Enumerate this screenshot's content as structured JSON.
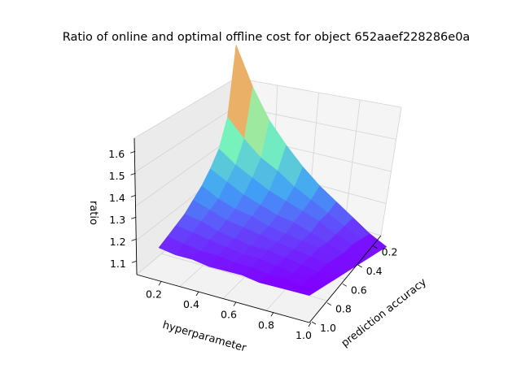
{
  "chart_data": {
    "type": "surface3d",
    "title": "Ratio of online and optimal offline cost for object 652aaef228286e0a",
    "xlabel": "hyperparameter",
    "ylabel": "prediction accuracy",
    "zlabel": "ratio",
    "colormap": "rainbow",
    "x_ticks": [
      "0.2",
      "0.4",
      "0.6",
      "0.8",
      "1.0"
    ],
    "y_ticks": [
      "0.2",
      "0.4",
      "0.6",
      "0.8",
      "1.0"
    ],
    "z_ticks": [
      "1.1",
      "1.2",
      "1.3",
      "1.4",
      "1.5",
      "1.6"
    ],
    "x": [
      0.1,
      0.2,
      0.3,
      0.4,
      0.5,
      0.6,
      0.7,
      0.8,
      0.9,
      1.0
    ],
    "y": [
      0.1,
      0.2,
      0.3,
      0.4,
      0.5,
      0.6,
      0.7,
      0.8,
      0.9,
      1.0
    ],
    "zlim": [
      1.06,
      1.66
    ],
    "z": [
      [
        1.66,
        1.43,
        1.34,
        1.29,
        1.25,
        1.22,
        1.19,
        1.17,
        1.15,
        1.13
      ],
      [
        1.53,
        1.37,
        1.3,
        1.26,
        1.22,
        1.2,
        1.18,
        1.16,
        1.14,
        1.12
      ],
      [
        1.43,
        1.32,
        1.27,
        1.23,
        1.2,
        1.18,
        1.16,
        1.15,
        1.13,
        1.12
      ],
      [
        1.36,
        1.29,
        1.24,
        1.21,
        1.19,
        1.17,
        1.15,
        1.14,
        1.13,
        1.11
      ],
      [
        1.3,
        1.25,
        1.22,
        1.19,
        1.17,
        1.16,
        1.14,
        1.13,
        1.12,
        1.11
      ],
      [
        1.25,
        1.22,
        1.2,
        1.18,
        1.16,
        1.15,
        1.14,
        1.13,
        1.12,
        1.11
      ],
      [
        1.21,
        1.19,
        1.18,
        1.16,
        1.15,
        1.14,
        1.13,
        1.12,
        1.11,
        1.1
      ],
      [
        1.17,
        1.16,
        1.15,
        1.14,
        1.14,
        1.13,
        1.12,
        1.11,
        1.11,
        1.1
      ],
      [
        1.13,
        1.13,
        1.13,
        1.12,
        1.12,
        1.12,
        1.11,
        1.11,
        1.1,
        1.1
      ],
      [
        1.1,
        1.1,
        1.1,
        1.1,
        1.1,
        1.1,
        1.1,
        1.1,
        1.1,
        1.1
      ]
    ]
  }
}
